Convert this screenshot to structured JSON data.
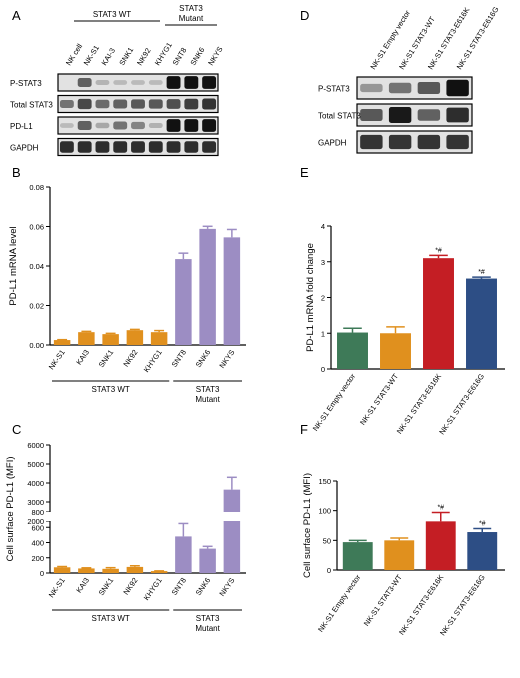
{
  "colors": {
    "orange": "#E0901E",
    "purple": "#9C8DC3",
    "green": "#3E7A58",
    "red": "#C41E24",
    "navy": "#2D4E85",
    "blot_bg": "#E2E2E2",
    "band": "#111111"
  },
  "panels": {
    "A": {
      "letter": "A",
      "group_wt": "STAT3 WT",
      "group_mut_line1": "STAT3",
      "group_mut_line2": "Mutant",
      "lanes": [
        "NK cell",
        "NK-S1",
        "KAI-3",
        "SNK1",
        "NK92",
        "KHYG1",
        "SNT8",
        "SNK6",
        "NKYS"
      ],
      "rows": [
        "P-STAT3",
        "Total STAT3",
        "PD-L1",
        "GAPDH"
      ],
      "band_intensity": [
        [
          0.0,
          0.55,
          0.08,
          0.05,
          0.05,
          0.05,
          1.0,
          1.0,
          1.0
        ],
        [
          0.45,
          0.7,
          0.5,
          0.55,
          0.6,
          0.6,
          0.65,
          0.75,
          0.8
        ],
        [
          0.05,
          0.55,
          0.15,
          0.45,
          0.35,
          0.1,
          1.0,
          1.0,
          1.0
        ],
        [
          0.85,
          0.85,
          0.85,
          0.85,
          0.85,
          0.85,
          0.85,
          0.85,
          0.85
        ]
      ]
    },
    "D": {
      "letter": "D",
      "lanes": [
        "NK-S1 Empty vector",
        "NK-S1 STAT3-WT",
        "NK-S1 STAT3-E616K",
        "NK-S1 STAT3-E616G"
      ],
      "rows": [
        "P-STAT3",
        "Total STAT3",
        "GAPDH"
      ],
      "band_intensity": [
        [
          0.25,
          0.45,
          0.6,
          1.0
        ],
        [
          0.6,
          0.95,
          0.55,
          0.85
        ],
        [
          0.8,
          0.8,
          0.8,
          0.8
        ]
      ]
    }
  },
  "chart_data": [
    {
      "panel": "B",
      "type": "bar",
      "ylabel": "PD-L1 mRNA level",
      "categories": [
        "NK-S1",
        "KAI3",
        "SNK1",
        "NK92",
        "KHYG1",
        "SNT8",
        "SNK6",
        "NKYS"
      ],
      "values": [
        0.0025,
        0.0065,
        0.0055,
        0.0075,
        0.0065,
        0.0435,
        0.0588,
        0.0545
      ],
      "errors": [
        0.0002,
        0.0004,
        0.0004,
        0.0004,
        0.0008,
        0.003,
        0.0013,
        0.004
      ],
      "ylim": [
        0,
        0.08
      ],
      "yticks": [
        0.0,
        0.02,
        0.04,
        0.06,
        0.08
      ],
      "ytick_labels": [
        "0.00",
        "0.02",
        "0.04",
        "0.06",
        "0.08"
      ],
      "groups": [
        {
          "label": "STAT3 WT",
          "label2": "",
          "start": 0,
          "end": 4
        },
        {
          "label": "STAT3",
          "label2": "Mutant",
          "start": 5,
          "end": 7
        }
      ]
    },
    {
      "panel": "C",
      "type": "bar",
      "ylabel": "Cell surface PD-L1 (MFI)",
      "categories": [
        "NK-S1",
        "KAI3",
        "SNK1",
        "NK92",
        "KHYG1",
        "SNT8",
        "SNK6",
        "NKYS"
      ],
      "values": [
        75,
        60,
        55,
        80,
        25,
        480,
        320,
        3650
      ],
      "errors": [
        10,
        8,
        15,
        15,
        3,
        170,
        30,
        650
      ],
      "y_axis_break": [
        800,
        2000
      ],
      "ylim": [
        0,
        6000
      ],
      "yticks": [
        0,
        200,
        400,
        600,
        800,
        2000,
        3000,
        4000,
        5000,
        6000
      ],
      "ytick_labels": [
        "0",
        "200",
        "400",
        "600",
        "800",
        "2000",
        "3000",
        "4000",
        "5000",
        "6000"
      ],
      "groups": [
        {
          "label": "STAT3 WT",
          "label2": "",
          "start": 0,
          "end": 4
        },
        {
          "label": "STAT3",
          "label2": "Mutant",
          "start": 5,
          "end": 7
        }
      ]
    },
    {
      "panel": "E",
      "type": "bar",
      "ylabel": "PD-L1 mRNA fold change",
      "categories": [
        "NK-S1 Empty vector",
        "NK-S1 STAT3-WT",
        "NK-S1 STAT3-E616K",
        "NK-S1 STAT3-E616G"
      ],
      "values": [
        1.02,
        1.0,
        3.1,
        2.53
      ],
      "errors": [
        0.12,
        0.18,
        0.08,
        0.04
      ],
      "annotations": [
        "",
        "",
        "*#",
        "*#"
      ],
      "ylim": [
        0,
        4
      ],
      "yticks": [
        0,
        1,
        2,
        3,
        4
      ],
      "ytick_labels": [
        "0",
        "1",
        "2",
        "3",
        "4"
      ]
    },
    {
      "panel": "F",
      "type": "bar",
      "ylabel": "Cell surface PD-L1 (MFI)",
      "categories": [
        "NK-S1 Empty vector",
        "NK-S1 STAT3-WT",
        "NK-S1 STAT3-E616K",
        "NK-S1 STAT3-E616G"
      ],
      "values": [
        47,
        50,
        82,
        64
      ],
      "errors": [
        3,
        4,
        15,
        6
      ],
      "annotations": [
        "",
        "",
        "*#",
        "*#"
      ],
      "ylim": [
        0,
        150
      ],
      "yticks": [
        0,
        50,
        100,
        150
      ],
      "ytick_labels": [
        "0",
        "50",
        "100",
        "150"
      ]
    }
  ]
}
